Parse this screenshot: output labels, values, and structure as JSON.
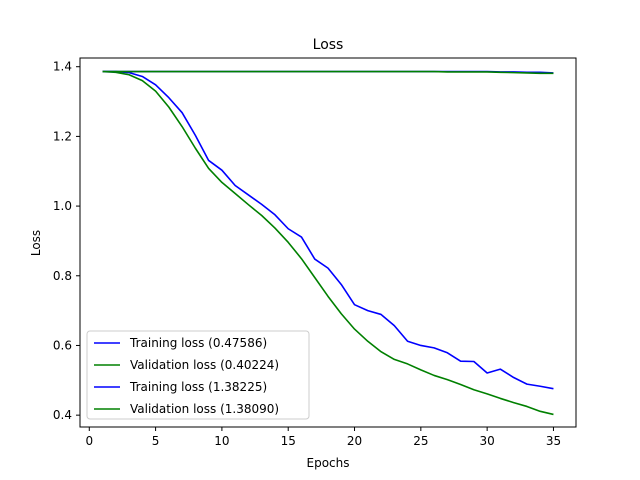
{
  "chart_data": {
    "type": "line",
    "title": "Loss",
    "xlabel": "Epochs",
    "ylabel": "Loss",
    "xlim": [
      -0.7,
      36.7
    ],
    "ylim": [
      0.366,
      1.425
    ],
    "xticks": [
      0,
      5,
      10,
      15,
      20,
      25,
      30,
      35
    ],
    "yticks": [
      0.4,
      0.6,
      0.8,
      1.0,
      1.2,
      1.4
    ],
    "ytick_labels": [
      "0.4",
      "0.6",
      "0.8",
      "1.0",
      "1.2",
      "1.4"
    ],
    "grid": false,
    "legend_position": "lower-left",
    "x": [
      1,
      2,
      3,
      4,
      5,
      6,
      7,
      8,
      9,
      10,
      11,
      12,
      13,
      14,
      15,
      16,
      17,
      18,
      19,
      20,
      21,
      22,
      23,
      24,
      25,
      26,
      27,
      28,
      29,
      30,
      31,
      32,
      33,
      34,
      35
    ],
    "series": [
      {
        "name": "Training loss (0.47586)",
        "color": "#0000ff",
        "values": [
          1.386,
          1.386,
          1.383,
          1.372,
          1.348,
          1.311,
          1.268,
          1.203,
          1.131,
          1.103,
          1.059,
          1.032,
          1.005,
          0.975,
          0.935,
          0.911,
          0.848,
          0.822,
          0.775,
          0.717,
          0.7,
          0.689,
          0.657,
          0.612,
          0.6,
          0.593,
          0.579,
          0.555,
          0.554,
          0.521,
          0.532,
          0.508,
          0.489,
          0.483,
          0.476
        ]
      },
      {
        "name": "Validation loss (0.40224)",
        "color": "#008000",
        "values": [
          1.386,
          1.384,
          1.377,
          1.36,
          1.33,
          1.284,
          1.228,
          1.166,
          1.108,
          1.068,
          1.036,
          1.004,
          0.973,
          0.937,
          0.896,
          0.849,
          0.795,
          0.741,
          0.691,
          0.647,
          0.612,
          0.582,
          0.56,
          0.547,
          0.53,
          0.514,
          0.502,
          0.488,
          0.473,
          0.461,
          0.448,
          0.436,
          0.425,
          0.411,
          0.402
        ]
      },
      {
        "name": "Training loss (1.38225)",
        "color": "#0000ff",
        "values": [
          1.386,
          1.386,
          1.386,
          1.386,
          1.386,
          1.386,
          1.386,
          1.386,
          1.386,
          1.386,
          1.386,
          1.386,
          1.386,
          1.386,
          1.386,
          1.386,
          1.386,
          1.386,
          1.386,
          1.386,
          1.386,
          1.386,
          1.386,
          1.386,
          1.386,
          1.386,
          1.386,
          1.386,
          1.386,
          1.386,
          1.385,
          1.385,
          1.384,
          1.384,
          1.382
        ]
      },
      {
        "name": "Validation loss (1.38090)",
        "color": "#008000",
        "values": [
          1.386,
          1.386,
          1.386,
          1.386,
          1.386,
          1.386,
          1.386,
          1.386,
          1.386,
          1.386,
          1.386,
          1.386,
          1.386,
          1.386,
          1.386,
          1.386,
          1.386,
          1.386,
          1.386,
          1.386,
          1.386,
          1.386,
          1.386,
          1.386,
          1.386,
          1.386,
          1.385,
          1.385,
          1.385,
          1.385,
          1.384,
          1.383,
          1.382,
          1.381,
          1.381
        ]
      }
    ]
  }
}
